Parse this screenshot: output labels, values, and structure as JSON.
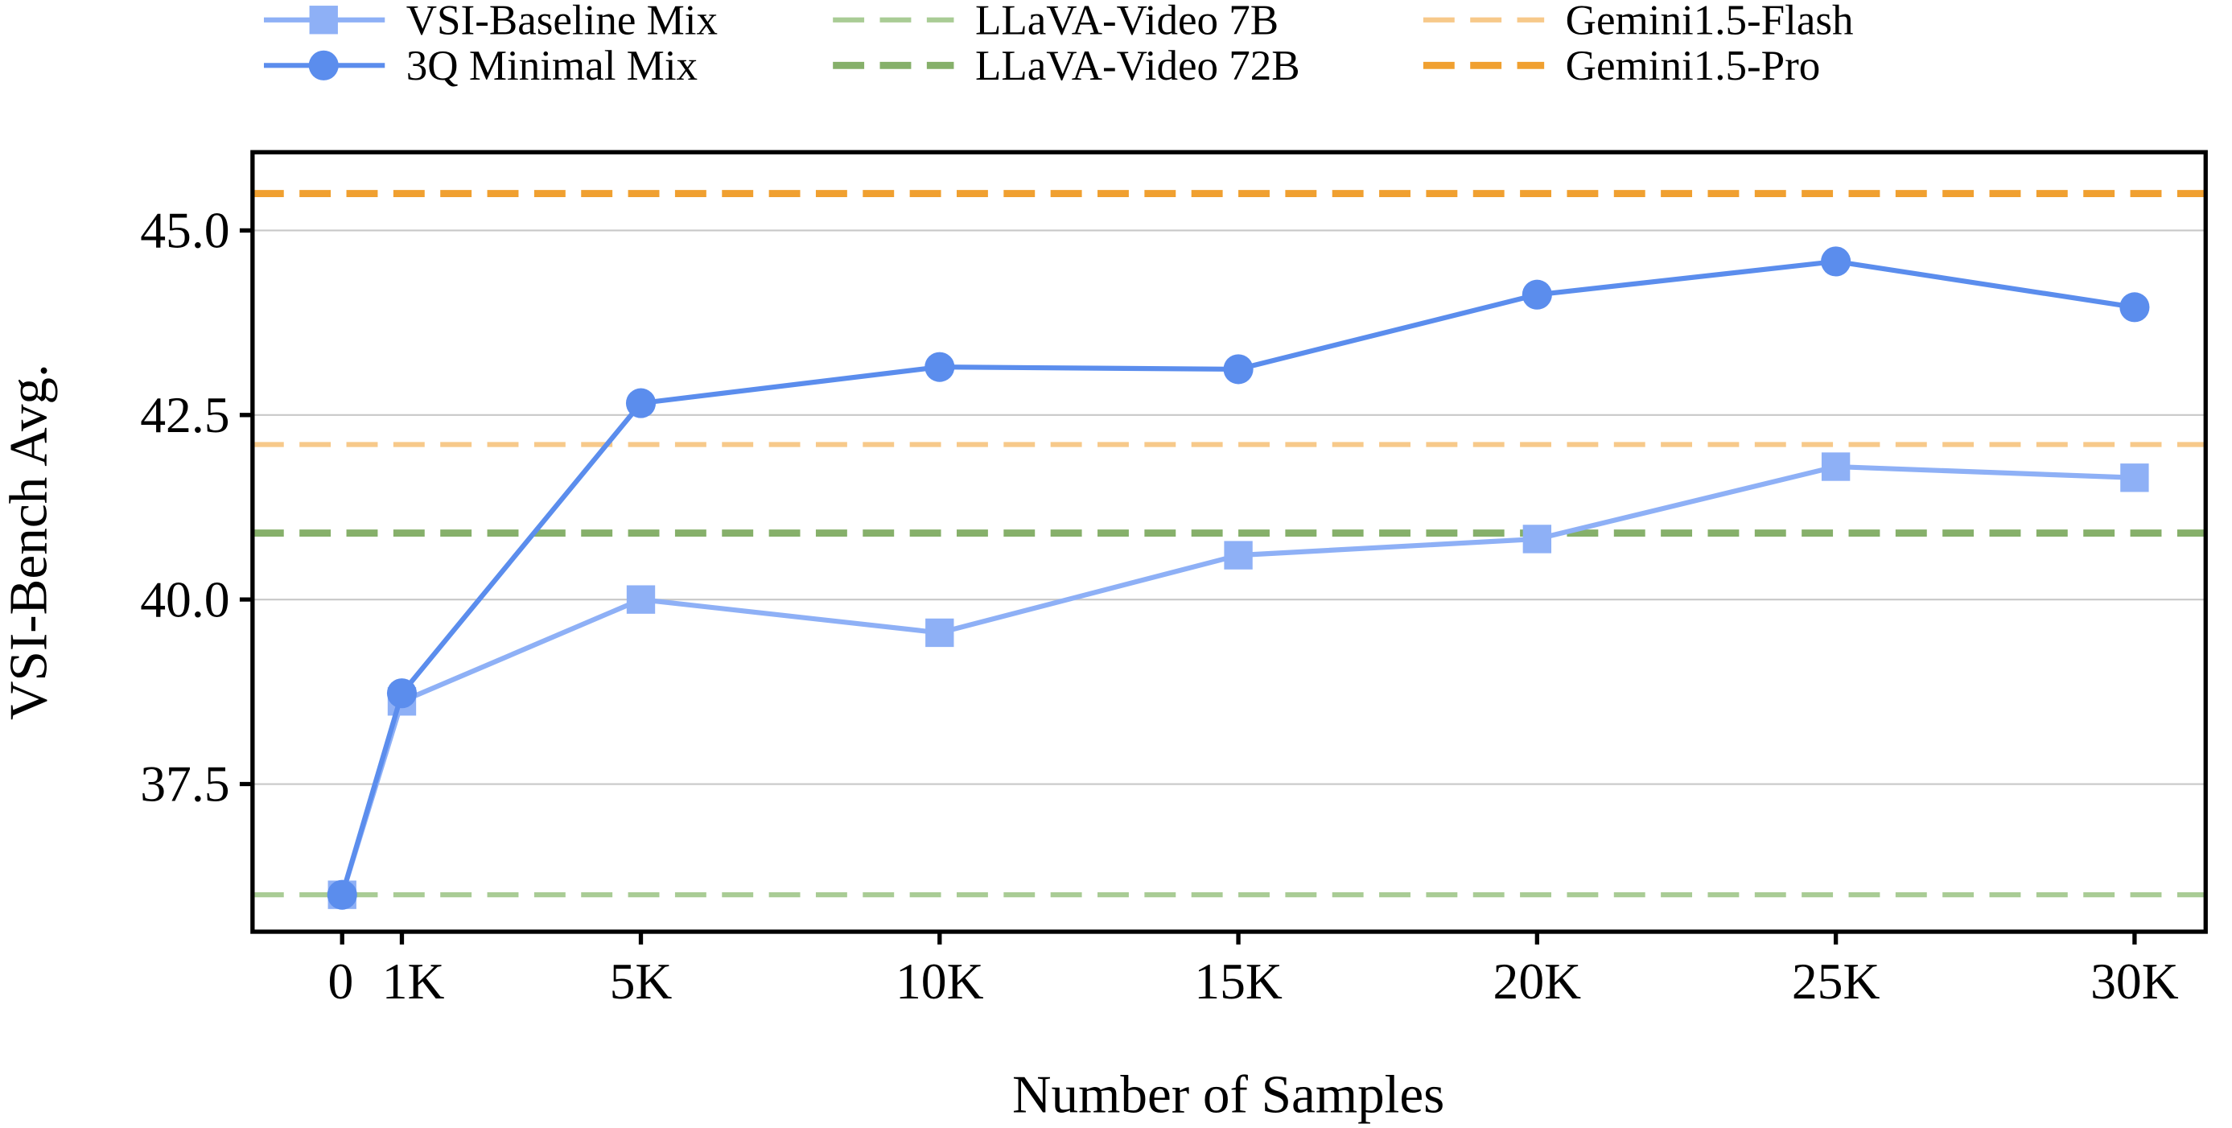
{
  "chart_data": {
    "type": "line",
    "xlabel": "Number of Samples",
    "ylabel": "VSI-Bench Avg.",
    "xlim": [
      -1500,
      31190
    ],
    "ylim": [
      35.5,
      46.06
    ],
    "grid": "horizontal",
    "legend_position": "top-outside",
    "x_ticks": [
      {
        "value": 0,
        "label": "0"
      },
      {
        "value": 1000,
        "label": "1K"
      },
      {
        "value": 5000,
        "label": "5K"
      },
      {
        "value": 10000,
        "label": "10K"
      },
      {
        "value": 15000,
        "label": "15K"
      },
      {
        "value": 20000,
        "label": "20K"
      },
      {
        "value": 25000,
        "label": "25K"
      },
      {
        "value": 30000,
        "label": "30K"
      }
    ],
    "y_ticks": [
      {
        "value": 37.5,
        "label": "37.5"
      },
      {
        "value": 40.0,
        "label": "40.0"
      },
      {
        "value": 42.5,
        "label": "42.5"
      },
      {
        "value": 45.0,
        "label": "45.0"
      }
    ],
    "x": [
      0,
      1000,
      5000,
      10000,
      15000,
      20000,
      25000,
      30000
    ],
    "series": [
      {
        "name": "VSI-Baseline Mix",
        "marker": "square",
        "color": "#8eb0f6",
        "values": [
          36.0,
          38.62,
          40.0,
          39.55,
          40.6,
          40.82,
          41.8,
          41.65
        ]
      },
      {
        "name": "3Q Minimal Mix",
        "marker": "circle",
        "color": "#5b8ded",
        "values": [
          36.0,
          38.73,
          42.66,
          43.15,
          43.12,
          44.13,
          44.58,
          43.96
        ]
      }
    ],
    "reference_lines": [
      {
        "name": "LLaVA-Video 7B",
        "value": 36.0,
        "color": "#a9cc95"
      },
      {
        "name": "LLaVA-Video 72B",
        "value": 40.9,
        "color": "#86b06a"
      },
      {
        "name": "Gemini1.5-Flash",
        "value": 42.1,
        "color": "#f7c98a"
      },
      {
        "name": "Gemini1.5-Pro",
        "value": 45.5,
        "color": "#f0a030"
      }
    ]
  }
}
